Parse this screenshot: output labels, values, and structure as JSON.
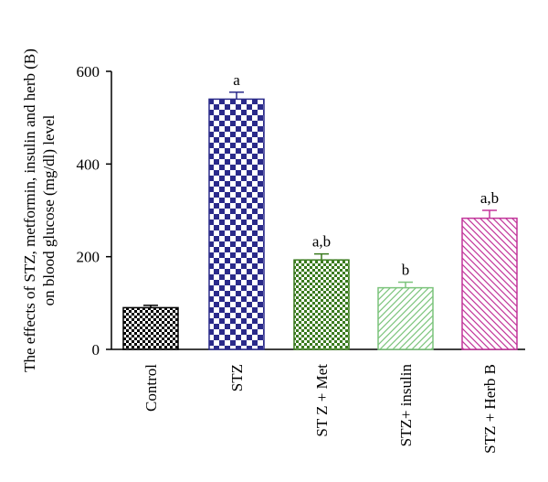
{
  "chart_data": {
    "type": "bar",
    "ylabel_line1": "The effects of STZ, metformin, insulin and herb (B)",
    "ylabel_line2": "on blood glucose (mg/dl) level",
    "ylim": [
      0,
      600
    ],
    "yticks": [
      "0",
      "200",
      "400",
      "600"
    ],
    "grid": false,
    "categories": [
      "Control",
      "STZ",
      "ST Z + Met",
      "STZ+ insulin",
      "STZ + Herb B"
    ],
    "values": [
      90,
      540,
      193,
      133,
      283
    ],
    "errors": [
      5,
      15,
      13,
      12,
      17
    ],
    "significance": [
      "",
      "a",
      "a,b",
      "b",
      "a,b"
    ],
    "fills": [
      {
        "pattern": "checker-small",
        "color": "#000000"
      },
      {
        "pattern": "checker-large",
        "color": "#2a2a8a"
      },
      {
        "pattern": "checker-small",
        "color": "#3a7a1e"
      },
      {
        "pattern": "diagonal",
        "color": "#7cc47c"
      },
      {
        "pattern": "diagonal",
        "color": "#c2359a"
      }
    ]
  }
}
